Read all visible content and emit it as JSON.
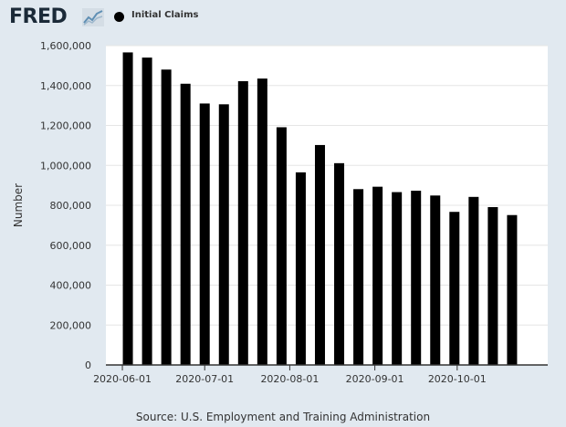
{
  "header": {
    "logo_text": "FRED",
    "logo_icon": "fred-line-chart-icon",
    "legend_label": "Initial Claims",
    "legend_marker_color": "#000000"
  },
  "source": "Source: U.S. Employment and Training Administration",
  "chart_data": {
    "type": "bar",
    "ylabel": "Number",
    "xlabel": "",
    "ylim": [
      0,
      1600000
    ],
    "yticks": [
      0,
      200000,
      400000,
      600000,
      800000,
      1000000,
      1200000,
      1400000,
      1600000
    ],
    "ytick_labels": [
      "0",
      "200,000",
      "400,000",
      "600,000",
      "800,000",
      "1,000,000",
      "1,200,000",
      "1,400,000",
      "1,600,000"
    ],
    "xticks": [
      "2020-06-01",
      "2020-07-01",
      "2020-08-01",
      "2020-09-01",
      "2020-10-01"
    ],
    "x_range": [
      "2020-05-26",
      "2020-11-03"
    ],
    "bar_color": "#000000",
    "grid": true,
    "legend": "top-left",
    "categories": [
      "2020-06-06",
      "2020-06-13",
      "2020-06-20",
      "2020-06-27",
      "2020-07-04",
      "2020-07-11",
      "2020-07-18",
      "2020-07-25",
      "2020-08-01",
      "2020-08-08",
      "2020-08-15",
      "2020-08-22",
      "2020-08-29",
      "2020-09-05",
      "2020-09-12",
      "2020-09-19",
      "2020-09-26",
      "2020-10-03",
      "2020-10-10",
      "2020-10-17",
      "2020-10-24"
    ],
    "values": [
      1566000,
      1540000,
      1480000,
      1409000,
      1310000,
      1306000,
      1422000,
      1435000,
      1191000,
      965000,
      1102000,
      1011000,
      881000,
      893000,
      866000,
      873000,
      849000,
      767000,
      842000,
      791000,
      751000
    ]
  }
}
